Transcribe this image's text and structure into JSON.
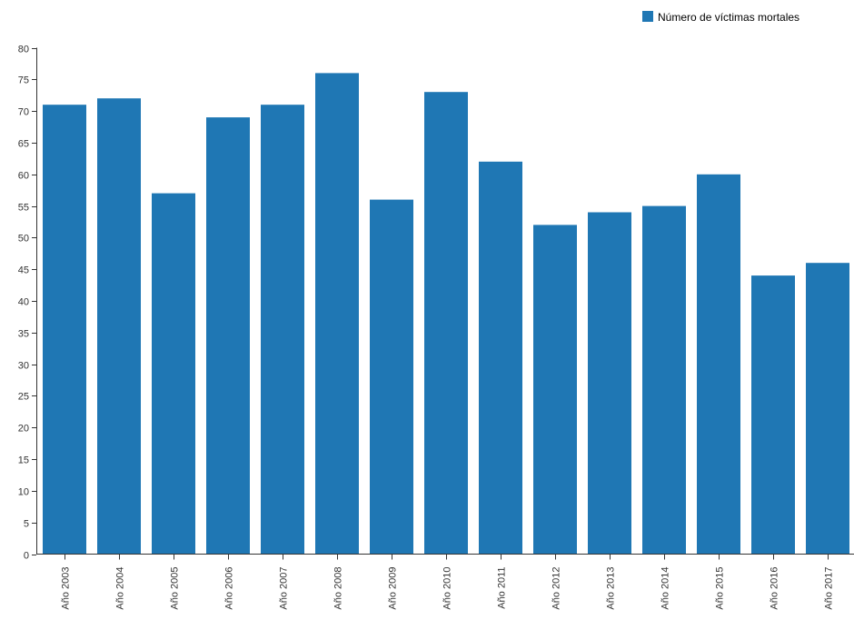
{
  "chart_data": {
    "type": "bar",
    "categories": [
      "Año 2003",
      "Año 2004",
      "Año 2005",
      "Año 2006",
      "Año 2007",
      "Año 2008",
      "Año 2009",
      "Año 2010",
      "Año 2011",
      "Año 2012",
      "Año 2013",
      "Año 2014",
      "Año 2015",
      "Año 2016",
      "Año 2017"
    ],
    "series": [
      {
        "name": "Número de víctimas mortales",
        "values": [
          71,
          72,
          57,
          69,
          71,
          76,
          56,
          73,
          62,
          52,
          54,
          55,
          60,
          44,
          46
        ],
        "color": "#1f77b4"
      }
    ],
    "ylim": [
      0,
      80
    ],
    "yticks": [
      0,
      5,
      10,
      15,
      20,
      25,
      30,
      35,
      40,
      45,
      50,
      55,
      60,
      65,
      70,
      75,
      80
    ],
    "grid": false,
    "legend_position": "top-right",
    "title": "",
    "xlabel": "",
    "ylabel": ""
  }
}
